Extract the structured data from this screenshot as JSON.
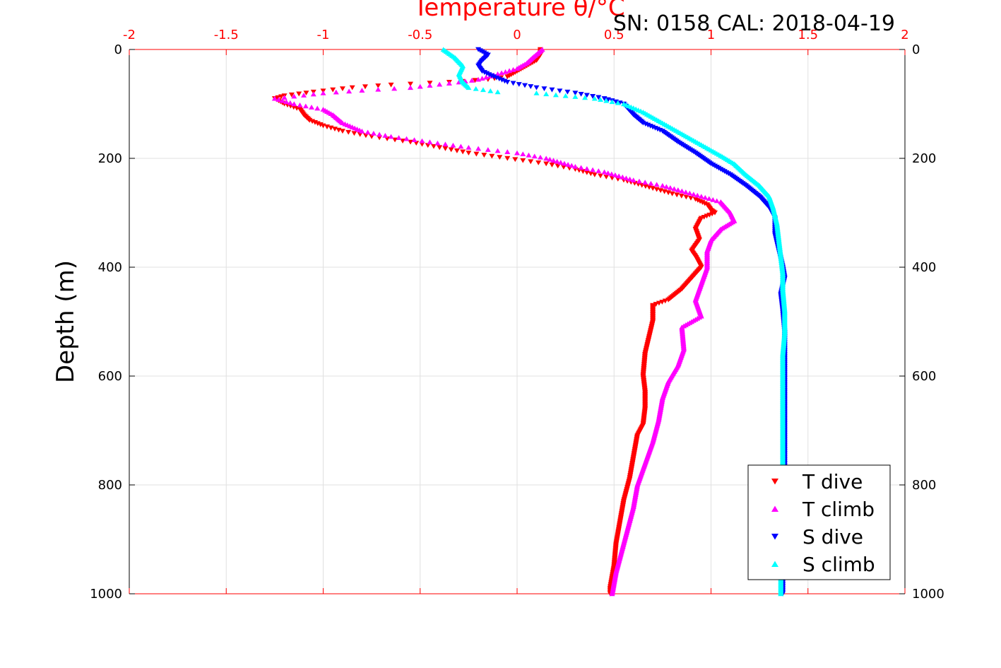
{
  "chart_data": {
    "type": "scatter",
    "subtitle": "SN: 0158  CAL: 2018-04-19",
    "xlabel": "Temperature θ/°C",
    "ylabel": "Depth (m)",
    "xlim": [
      -2,
      2
    ],
    "ylim": [
      0,
      1000
    ],
    "y_reversed": true,
    "x_ticks": [
      -2,
      -1.5,
      -1,
      -0.5,
      0,
      0.5,
      1,
      1.5,
      2
    ],
    "x_tick_labels": [
      "-2",
      "-1.5",
      "-1",
      "-0.5",
      "0",
      "0.5",
      "1",
      "1.5",
      "2"
    ],
    "y_ticks": [
      0,
      200,
      400,
      600,
      800,
      1000
    ],
    "y_tick_labels": [
      "0",
      "200",
      "400",
      "600",
      "800",
      "1000"
    ],
    "grid": true,
    "legend_position": "bottom-right",
    "colors": {
      "axis_x": "#ff0000",
      "axis_y": "#000000",
      "grid": "#e0e0e0"
    },
    "series": [
      {
        "name": "T dive",
        "marker": "triangle-down",
        "color": "#ff0000",
        "points": [
          [
            0.12,
            0
          ],
          [
            0.12,
            10
          ],
          [
            0.1,
            20
          ],
          [
            0.05,
            30
          ],
          [
            0.0,
            40
          ],
          [
            -0.05,
            50
          ],
          [
            -0.15,
            55
          ],
          [
            -0.35,
            60
          ],
          [
            -0.65,
            65
          ],
          [
            -0.85,
            70
          ],
          [
            -1.05,
            78
          ],
          [
            -1.2,
            85
          ],
          [
            -1.25,
            90
          ],
          [
            -1.2,
            100
          ],
          [
            -1.12,
            110
          ],
          [
            -1.1,
            120
          ],
          [
            -1.07,
            130
          ],
          [
            -1.0,
            140
          ],
          [
            -0.9,
            150
          ],
          [
            -0.75,
            160
          ],
          [
            -0.55,
            170
          ],
          [
            -0.4,
            180
          ],
          [
            -0.25,
            190
          ],
          [
            -0.05,
            200
          ],
          [
            0.15,
            210
          ],
          [
            0.3,
            220
          ],
          [
            0.4,
            230
          ],
          [
            0.55,
            240
          ],
          [
            0.7,
            255
          ],
          [
            0.8,
            265
          ],
          [
            0.92,
            275
          ],
          [
            0.98,
            285
          ],
          [
            1.0,
            295
          ],
          [
            1.02,
            300
          ],
          [
            0.95,
            310
          ],
          [
            0.92,
            330
          ],
          [
            0.94,
            350
          ],
          [
            0.9,
            370
          ],
          [
            0.92,
            380
          ],
          [
            0.95,
            400
          ],
          [
            0.9,
            420
          ],
          [
            0.85,
            440
          ],
          [
            0.78,
            460
          ],
          [
            0.7,
            470
          ],
          [
            0.7,
            500
          ],
          [
            0.68,
            530
          ],
          [
            0.66,
            560
          ],
          [
            0.65,
            600
          ],
          [
            0.66,
            630
          ],
          [
            0.66,
            660
          ],
          [
            0.65,
            690
          ],
          [
            0.62,
            710
          ],
          [
            0.6,
            750
          ],
          [
            0.58,
            790
          ],
          [
            0.55,
            830
          ],
          [
            0.53,
            870
          ],
          [
            0.51,
            910
          ],
          [
            0.5,
            950
          ],
          [
            0.48,
            990
          ],
          [
            0.48,
            1000
          ]
        ]
      },
      {
        "name": "T climb",
        "marker": "triangle-up",
        "color": "#ff00ff",
        "points": [
          [
            0.13,
            0
          ],
          [
            0.08,
            15
          ],
          [
            0.05,
            25
          ],
          [
            0.0,
            35
          ],
          [
            -0.1,
            45
          ],
          [
            -0.2,
            55
          ],
          [
            -0.3,
            60
          ],
          [
            -0.55,
            70
          ],
          [
            -0.8,
            75
          ],
          [
            -1.0,
            80
          ],
          [
            -1.25,
            90
          ],
          [
            -1.15,
            100
          ],
          [
            -1.0,
            110
          ],
          [
            -0.95,
            120
          ],
          [
            -0.9,
            135
          ],
          [
            -0.8,
            150
          ],
          [
            -0.65,
            160
          ],
          [
            -0.45,
            170
          ],
          [
            -0.25,
            180
          ],
          [
            0.0,
            190
          ],
          [
            0.15,
            200
          ],
          [
            0.3,
            215
          ],
          [
            0.45,
            225
          ],
          [
            0.6,
            240
          ],
          [
            0.75,
            250
          ],
          [
            0.85,
            260
          ],
          [
            0.95,
            270
          ],
          [
            1.05,
            280
          ],
          [
            1.1,
            300
          ],
          [
            1.12,
            315
          ],
          [
            1.05,
            330
          ],
          [
            1.0,
            350
          ],
          [
            0.98,
            370
          ],
          [
            0.98,
            400
          ],
          [
            0.95,
            430
          ],
          [
            0.92,
            460
          ],
          [
            0.95,
            490
          ],
          [
            0.85,
            510
          ],
          [
            0.86,
            550
          ],
          [
            0.83,
            580
          ],
          [
            0.78,
            610
          ],
          [
            0.75,
            640
          ],
          [
            0.73,
            680
          ],
          [
            0.7,
            720
          ],
          [
            0.66,
            760
          ],
          [
            0.62,
            800
          ],
          [
            0.6,
            840
          ],
          [
            0.57,
            880
          ],
          [
            0.54,
            920
          ],
          [
            0.51,
            960
          ],
          [
            0.49,
            1000
          ]
        ]
      },
      {
        "name": "S dive",
        "marker": "triangle-down",
        "color": "#0000ff",
        "points": [
          [
            -0.2,
            0
          ],
          [
            -0.15,
            10
          ],
          [
            -0.18,
            20
          ],
          [
            -0.2,
            30
          ],
          [
            -0.18,
            40
          ],
          [
            -0.12,
            50
          ],
          [
            -0.05,
            60
          ],
          [
            0.1,
            70
          ],
          [
            0.3,
            80
          ],
          [
            0.45,
            90
          ],
          [
            0.55,
            100
          ],
          [
            0.6,
            120
          ],
          [
            0.65,
            135
          ],
          [
            0.75,
            150
          ],
          [
            0.83,
            170
          ],
          [
            0.92,
            190
          ],
          [
            1.0,
            210
          ],
          [
            1.1,
            230
          ],
          [
            1.18,
            250
          ],
          [
            1.25,
            270
          ],
          [
            1.3,
            290
          ],
          [
            1.33,
            310
          ],
          [
            1.33,
            340
          ],
          [
            1.35,
            370
          ],
          [
            1.37,
            400
          ],
          [
            1.38,
            420
          ],
          [
            1.36,
            450
          ],
          [
            1.37,
            480
          ],
          [
            1.38,
            520
          ],
          [
            1.38,
            560
          ],
          [
            1.38,
            600
          ],
          [
            1.38,
            650
          ],
          [
            1.38,
            700
          ],
          [
            1.38,
            750
          ],
          [
            1.38,
            800
          ],
          [
            1.37,
            850
          ],
          [
            1.37,
            900
          ],
          [
            1.37,
            950
          ],
          [
            1.37,
            1000
          ]
        ]
      },
      {
        "name": "S climb",
        "marker": "triangle-up",
        "color": "#00ffff",
        "points": [
          [
            -0.38,
            0
          ],
          [
            -0.32,
            15
          ],
          [
            -0.28,
            30
          ],
          [
            -0.3,
            45
          ],
          [
            -0.28,
            60
          ],
          [
            -0.25,
            70
          ],
          [
            -0.1,
            78
          ],
          [
            0.1,
            80
          ],
          [
            0.25,
            85
          ],
          [
            0.4,
            90
          ],
          [
            0.55,
            100
          ],
          [
            0.65,
            115
          ],
          [
            0.75,
            135
          ],
          [
            0.85,
            155
          ],
          [
            0.95,
            175
          ],
          [
            1.05,
            195
          ],
          [
            1.12,
            210
          ],
          [
            1.18,
            230
          ],
          [
            1.25,
            250
          ],
          [
            1.3,
            270
          ],
          [
            1.32,
            290
          ],
          [
            1.34,
            320
          ],
          [
            1.35,
            350
          ],
          [
            1.36,
            380
          ],
          [
            1.37,
            410
          ],
          [
            1.37,
            440
          ],
          [
            1.38,
            480
          ],
          [
            1.38,
            520
          ],
          [
            1.37,
            560
          ],
          [
            1.37,
            600
          ],
          [
            1.37,
            650
          ],
          [
            1.37,
            700
          ],
          [
            1.37,
            750
          ],
          [
            1.37,
            800
          ],
          [
            1.36,
            850
          ],
          [
            1.36,
            900
          ],
          [
            1.36,
            950
          ],
          [
            1.36,
            1000
          ]
        ]
      }
    ]
  }
}
